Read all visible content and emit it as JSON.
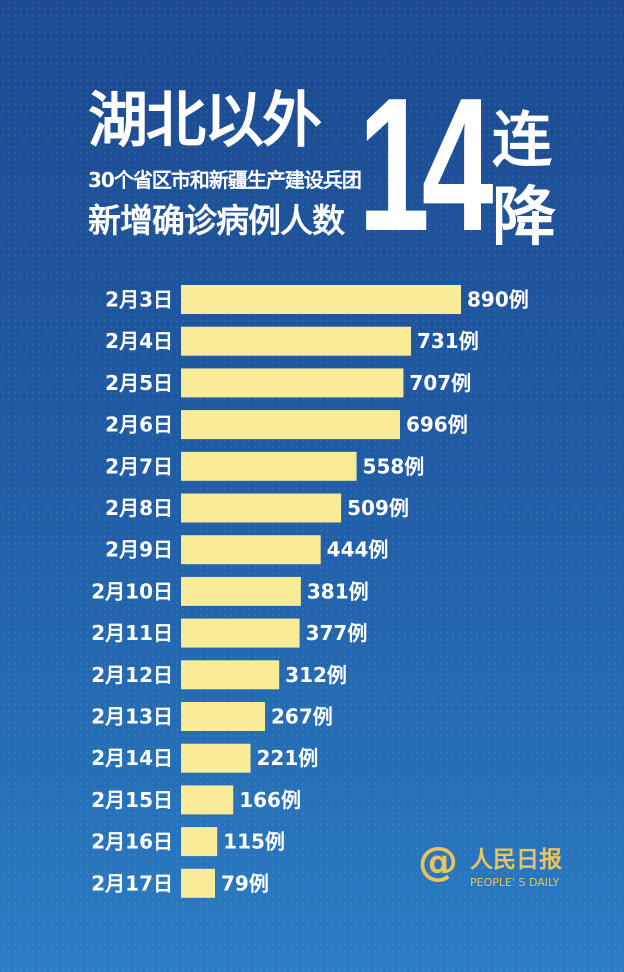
{
  "header": {
    "title_line1": "湖北以外",
    "title_line2": "30个省区市和新疆生产建设兵团",
    "title_line3": "新增确诊病例人数",
    "big_number": "14",
    "big_char1": "连",
    "big_char2": "降"
  },
  "logo": {
    "symbol": "@",
    "name_cn": "人民日报",
    "name_en": "PEOPLE' S DAILY"
  },
  "colors": {
    "bar": "#f8ec98",
    "background_top": "#1c4a90",
    "background_bottom": "#2a7cc4",
    "text": "#ffffff",
    "logo": "#e8c45a"
  },
  "chart_data": {
    "type": "bar",
    "orientation": "horizontal",
    "categories": [
      "2月3日",
      "2月4日",
      "2月5日",
      "2月6日",
      "2月7日",
      "2月8日",
      "2月9日",
      "2月10日",
      "2月11日",
      "2月12日",
      "2月13日",
      "2月14日",
      "2月15日",
      "2月16日",
      "2月17日"
    ],
    "values": [
      890,
      731,
      707,
      696,
      558,
      509,
      444,
      381,
      377,
      312,
      267,
      221,
      166,
      115,
      79
    ],
    "data_labels": [
      "890例",
      "731例",
      "707例",
      "696例",
      "558例",
      "509例",
      "444例",
      "381例",
      "377例",
      "312例",
      "267例",
      "221例",
      "166例",
      "115例",
      "79例"
    ],
    "grid": false
  }
}
